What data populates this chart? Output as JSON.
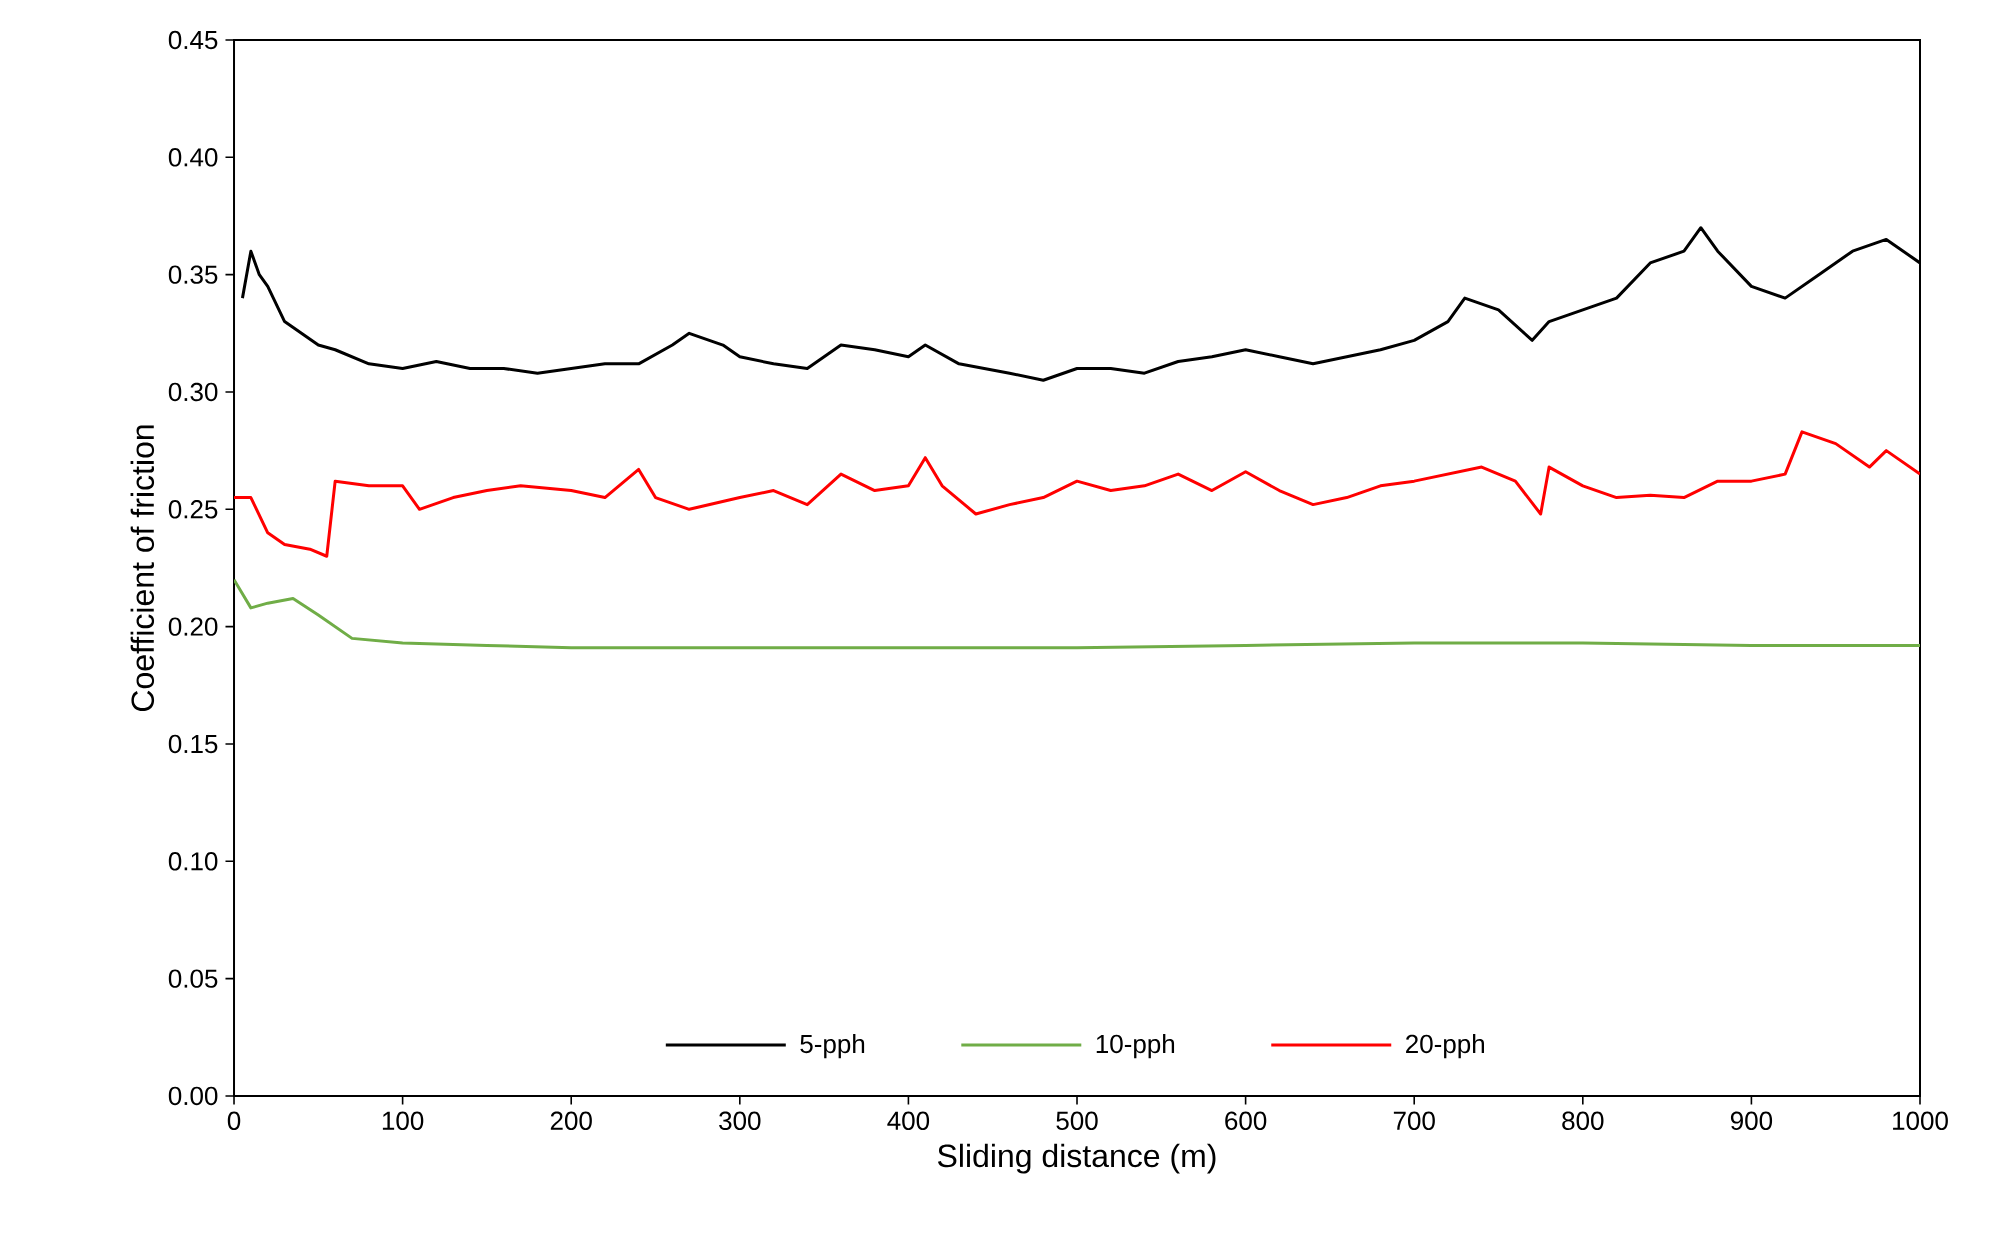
{
  "chart_data": {
    "type": "line",
    "xlabel": "Sliding distance (m)",
    "ylabel": "Coefficient of friction",
    "xlim": [
      0,
      1000
    ],
    "ylim": [
      0,
      0.45
    ],
    "xticks": [
      0,
      100,
      200,
      300,
      400,
      500,
      600,
      700,
      800,
      900,
      1000
    ],
    "yticks": [
      {
        "value": 0,
        "label": "0.00"
      },
      {
        "value": 0.05,
        "label": "0.05"
      },
      {
        "value": 0.1,
        "label": "0.10"
      },
      {
        "value": 0.15,
        "label": "0.15"
      },
      {
        "value": 0.2,
        "label": "0.20"
      },
      {
        "value": 0.25,
        "label": "0.25"
      },
      {
        "value": 0.3,
        "label": "0.30"
      },
      {
        "value": 0.35,
        "label": "0.35"
      },
      {
        "value": 0.4,
        "label": "0.40"
      },
      {
        "value": 0.45,
        "label": "0.45"
      }
    ],
    "legend": "bottom",
    "grid": false,
    "marker": "none",
    "line_style": "solid",
    "series": [
      {
        "name": "5-pph",
        "color": "#000000",
        "x": [
          5,
          10,
          15,
          20,
          30,
          40,
          50,
          60,
          80,
          100,
          120,
          140,
          160,
          180,
          200,
          220,
          240,
          260,
          270,
          290,
          300,
          320,
          340,
          360,
          380,
          400,
          410,
          430,
          460,
          480,
          500,
          520,
          540,
          560,
          580,
          600,
          620,
          640,
          660,
          680,
          700,
          720,
          730,
          750,
          770,
          780,
          800,
          820,
          840,
          860,
          870,
          880,
          900,
          920,
          940,
          960,
          980,
          990,
          1000
        ],
        "values": [
          0.34,
          0.36,
          0.35,
          0.345,
          0.33,
          0.325,
          0.32,
          0.318,
          0.312,
          0.31,
          0.313,
          0.31,
          0.31,
          0.308,
          0.31,
          0.312,
          0.312,
          0.32,
          0.325,
          0.32,
          0.315,
          0.312,
          0.31,
          0.32,
          0.318,
          0.315,
          0.32,
          0.312,
          0.308,
          0.305,
          0.31,
          0.31,
          0.308,
          0.313,
          0.315,
          0.318,
          0.315,
          0.312,
          0.315,
          0.318,
          0.322,
          0.33,
          0.34,
          0.335,
          0.322,
          0.33,
          0.335,
          0.34,
          0.355,
          0.36,
          0.37,
          0.36,
          0.345,
          0.34,
          0.35,
          0.36,
          0.365,
          0.36,
          0.355
        ]
      },
      {
        "name": "10-pph",
        "color": "#70ad47",
        "x": [
          0,
          10,
          20,
          35,
          50,
          70,
          100,
          150,
          200,
          300,
          400,
          500,
          600,
          700,
          800,
          900,
          1000
        ],
        "values": [
          0.22,
          0.208,
          0.21,
          0.212,
          0.205,
          0.195,
          0.193,
          0.192,
          0.191,
          0.191,
          0.191,
          0.191,
          0.192,
          0.193,
          0.193,
          0.192,
          0.192
        ]
      },
      {
        "name": "20-pph",
        "color": "#ff0000",
        "x": [
          0,
          10,
          20,
          30,
          45,
          55,
          60,
          80,
          100,
          110,
          130,
          150,
          170,
          200,
          220,
          240,
          250,
          270,
          300,
          320,
          340,
          360,
          380,
          400,
          410,
          420,
          440,
          460,
          480,
          500,
          520,
          540,
          560,
          580,
          600,
          620,
          640,
          660,
          680,
          700,
          720,
          740,
          760,
          775,
          780,
          800,
          820,
          840,
          860,
          880,
          900,
          920,
          930,
          950,
          970,
          980,
          1000
        ],
        "values": [
          0.255,
          0.255,
          0.24,
          0.235,
          0.233,
          0.23,
          0.262,
          0.26,
          0.26,
          0.25,
          0.255,
          0.258,
          0.26,
          0.258,
          0.255,
          0.267,
          0.255,
          0.25,
          0.255,
          0.258,
          0.252,
          0.265,
          0.258,
          0.26,
          0.272,
          0.26,
          0.248,
          0.252,
          0.255,
          0.262,
          0.258,
          0.26,
          0.265,
          0.258,
          0.266,
          0.258,
          0.252,
          0.255,
          0.26,
          0.262,
          0.265,
          0.268,
          0.262,
          0.248,
          0.268,
          0.26,
          0.255,
          0.256,
          0.255,
          0.262,
          0.262,
          0.265,
          0.283,
          0.278,
          0.268,
          0.275,
          0.265
        ]
      }
    ]
  }
}
